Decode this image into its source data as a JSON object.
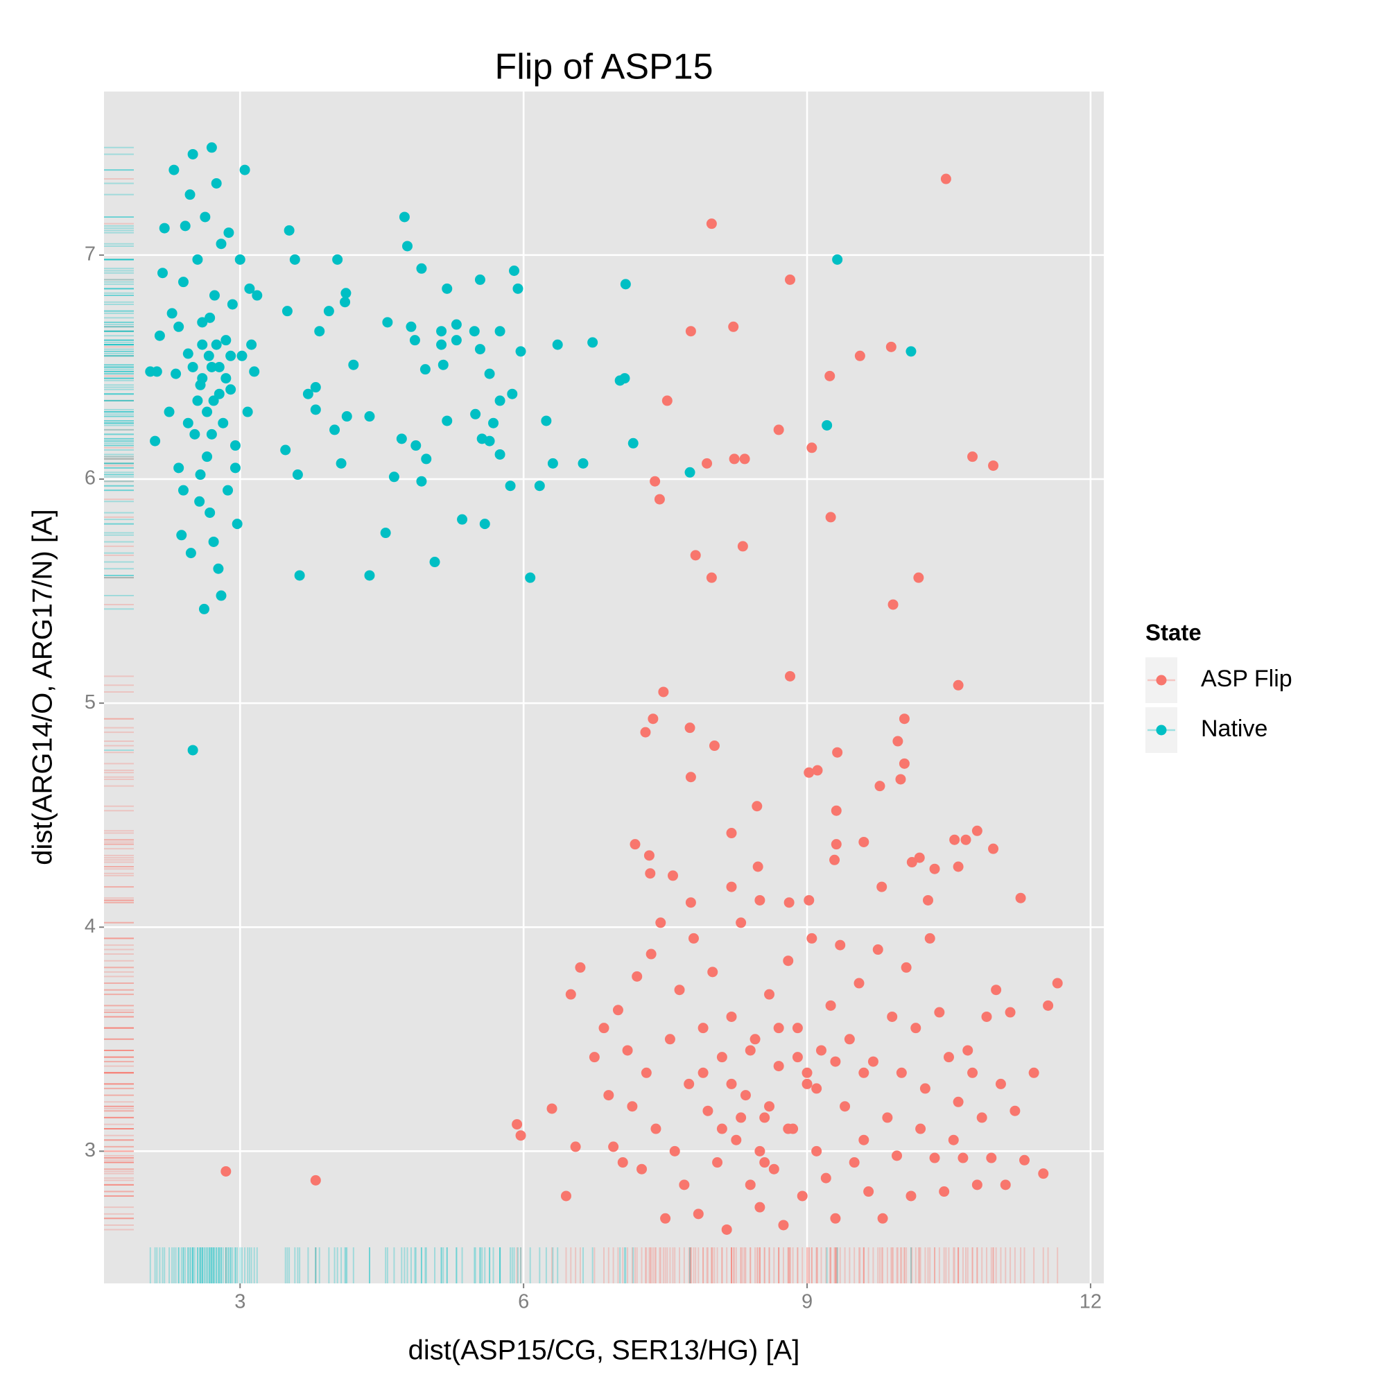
{
  "chart_data": {
    "type": "scatter",
    "title": "Flip of ASP15",
    "xlabel": "dist(ASP15/CG, SER13/HG) [A]",
    "ylabel": "dist(ARG14/O, ARG17/N) [A]",
    "legend_title": "State",
    "xlim": [
      1.56,
      12.14
    ],
    "ylim": [
      2.41,
      7.73
    ],
    "xticks": [
      3,
      6,
      9,
      12
    ],
    "yticks": [
      3,
      4,
      5,
      6,
      7
    ],
    "grid": true,
    "rug": true,
    "series": [
      {
        "name": "ASP Flip",
        "color": "#F8766D",
        "x": [
          7.99,
          10.47,
          8.82,
          7.77,
          8.22,
          9.89,
          9.56,
          9.24,
          7.52,
          8.7,
          9.05,
          10.75,
          10.97,
          7.94,
          8.23,
          8.34,
          7.39,
          7.44,
          9.25,
          8.32,
          7.82,
          7.99,
          10.18,
          9.91,
          8.82,
          10.6,
          7.48,
          7.37,
          7.29,
          7.76,
          8.02,
          10.03,
          9.96,
          9.32,
          10.03,
          9.02,
          9.11,
          9.99,
          7.77,
          9.77,
          8.47,
          9.31,
          8.2,
          10.8,
          7.18,
          10.56,
          10.68,
          9.6,
          9.31,
          10.97,
          7.33,
          10.19,
          9.29,
          10.11,
          8.48,
          10.6,
          10.35,
          7.34,
          7.58,
          9.79,
          8.2,
          11.26,
          10.28,
          8.81,
          8.5,
          9.02,
          7.77,
          5.97,
          5.93,
          6.3,
          6.45,
          6.55,
          6.5,
          6.6,
          6.75,
          6.85,
          6.9,
          6.95,
          7.0,
          7.05,
          7.1,
          7.15,
          7.2,
          7.25,
          7.3,
          7.35,
          7.4,
          7.45,
          7.5,
          7.55,
          7.6,
          7.65,
          7.7,
          7.75,
          7.8,
          7.85,
          7.9,
          7.95,
          8.0,
          8.05,
          8.1,
          8.15,
          8.2,
          8.25,
          8.3,
          8.35,
          8.4,
          8.45,
          8.5,
          8.55,
          8.6,
          8.65,
          8.7,
          8.75,
          8.8,
          8.85,
          8.9,
          8.95,
          9.0,
          9.05,
          9.1,
          9.15,
          9.2,
          9.25,
          9.3,
          9.35,
          9.4,
          9.45,
          9.5,
          9.55,
          9.6,
          9.65,
          9.7,
          9.75,
          9.8,
          9.85,
          9.9,
          9.95,
          10.0,
          10.05,
          10.1,
          10.15,
          10.2,
          10.25,
          10.3,
          10.35,
          10.4,
          10.45,
          10.5,
          10.55,
          10.6,
          10.65,
          10.7,
          10.75,
          10.8,
          10.85,
          10.9,
          10.95,
          11.0,
          11.05,
          11.1,
          11.15,
          11.2,
          11.3,
          11.4,
          11.5,
          11.55,
          11.65,
          8.2,
          8.4,
          8.6,
          8.8,
          9.0,
          8.5,
          8.7,
          9.1,
          8.3,
          8.9,
          9.3,
          8.1,
          7.9,
          9.6,
          8.55,
          2.85,
          3.8
        ],
        "y": [
          7.14,
          7.34,
          6.89,
          6.66,
          6.68,
          6.59,
          6.55,
          6.46,
          6.35,
          6.22,
          6.14,
          6.1,
          6.06,
          6.07,
          6.09,
          6.09,
          5.99,
          5.91,
          5.83,
          5.7,
          5.66,
          5.56,
          5.56,
          5.44,
          5.12,
          5.08,
          5.05,
          4.93,
          4.87,
          4.89,
          4.81,
          4.93,
          4.83,
          4.78,
          4.73,
          4.69,
          4.7,
          4.66,
          4.67,
          4.63,
          4.54,
          4.52,
          4.42,
          4.43,
          4.37,
          4.39,
          4.39,
          4.38,
          4.37,
          4.35,
          4.32,
          4.31,
          4.3,
          4.29,
          4.27,
          4.27,
          4.26,
          4.24,
          4.23,
          4.18,
          4.18,
          4.13,
          4.12,
          4.11,
          4.12,
          4.12,
          4.11,
          3.07,
          3.12,
          3.19,
          2.8,
          3.02,
          3.7,
          3.82,
          3.42,
          3.55,
          3.25,
          3.02,
          3.63,
          2.95,
          3.45,
          3.2,
          3.78,
          2.92,
          3.35,
          3.88,
          3.1,
          4.02,
          2.7,
          3.5,
          3.0,
          3.72,
          2.85,
          3.3,
          3.95,
          2.72,
          3.55,
          3.18,
          3.8,
          2.95,
          3.42,
          2.65,
          3.6,
          3.05,
          4.02,
          3.25,
          2.85,
          3.5,
          2.75,
          3.15,
          3.7,
          2.92,
          3.38,
          2.67,
          3.85,
          3.1,
          3.55,
          2.8,
          3.3,
          3.95,
          3.0,
          3.45,
          2.88,
          3.65,
          2.7,
          3.92,
          3.2,
          3.5,
          2.95,
          3.75,
          3.05,
          2.82,
          3.4,
          3.9,
          2.7,
          3.15,
          3.6,
          2.98,
          3.35,
          3.82,
          2.8,
          3.55,
          3.1,
          3.28,
          3.95,
          2.97,
          3.62,
          2.82,
          3.42,
          3.05,
          3.22,
          2.97,
          3.45,
          3.35,
          2.85,
          3.15,
          3.6,
          2.97,
          3.72,
          3.3,
          2.85,
          3.62,
          3.18,
          2.96,
          3.35,
          2.9,
          3.65,
          3.75,
          3.3,
          3.45,
          3.2,
          3.1,
          3.35,
          3.0,
          3.55,
          3.28,
          3.15,
          3.42,
          3.4,
          3.1,
          3.35,
          3.35,
          2.95,
          2.91,
          2.87
        ]
      },
      {
        "name": "Native",
        "color": "#00BFC4",
        "x": [
          3.52,
          3.58,
          4.03,
          4.74,
          4.77,
          4.92,
          3.5,
          3.84,
          3.94,
          4.12,
          4.11,
          4.56,
          4.81,
          4.85,
          5.13,
          5.13,
          5.29,
          5.29,
          5.48,
          5.54,
          5.19,
          5.9,
          5.94,
          5.75,
          5.97,
          5.54,
          5.15,
          4.96,
          4.2,
          3.8,
          3.72,
          3.8,
          4.13,
          4.0,
          4.37,
          5.19,
          5.49,
          5.68,
          5.88,
          5.75,
          5.64,
          5.56,
          5.64,
          5.75,
          4.71,
          4.86,
          4.97,
          4.92,
          4.63,
          4.07,
          3.48,
          3.61,
          5.86,
          6.17,
          6.24,
          6.31,
          6.63,
          6.36,
          6.73,
          7.02,
          7.07,
          7.08,
          7.16,
          7.76,
          9.32,
          10.1,
          9.21,
          5.35,
          5.59,
          4.54,
          5.06,
          3.63,
          4.37,
          6.07,
          2.5,
          2.05,
          2.1,
          2.12,
          2.15,
          2.18,
          2.2,
          2.25,
          2.28,
          2.3,
          2.32,
          2.35,
          2.38,
          2.4,
          2.42,
          2.45,
          2.47,
          2.48,
          2.5,
          2.52,
          2.55,
          2.57,
          2.58,
          2.6,
          2.62,
          2.63,
          2.65,
          2.67,
          2.68,
          2.7,
          2.72,
          2.73,
          2.75,
          2.77,
          2.78,
          2.8,
          2.8,
          2.82,
          2.85,
          2.87,
          2.88,
          2.9,
          2.92,
          2.95,
          2.97,
          3.0,
          3.02,
          3.05,
          3.08,
          3.1,
          3.12,
          3.15,
          3.18,
          2.6,
          2.7,
          2.65,
          2.75,
          2.55,
          2.85,
          2.7,
          2.6,
          2.5,
          2.9,
          2.78,
          2.68,
          2.45,
          2.35,
          2.95,
          2.58,
          2.72,
          2.4
        ],
        "y": [
          7.11,
          6.98,
          6.98,
          7.17,
          7.04,
          6.94,
          6.75,
          6.66,
          6.75,
          6.83,
          6.79,
          6.7,
          6.68,
          6.62,
          6.66,
          6.6,
          6.69,
          6.62,
          6.66,
          6.89,
          6.85,
          6.93,
          6.85,
          6.66,
          6.57,
          6.58,
          6.51,
          6.49,
          6.51,
          6.41,
          6.38,
          6.31,
          6.28,
          6.22,
          6.28,
          6.26,
          6.29,
          6.25,
          6.38,
          6.35,
          6.47,
          6.18,
          6.17,
          6.11,
          6.18,
          6.15,
          6.09,
          5.99,
          6.01,
          6.07,
          6.13,
          6.02,
          5.97,
          5.97,
          6.26,
          6.07,
          6.07,
          6.6,
          6.61,
          6.44,
          6.45,
          6.87,
          6.16,
          6.03,
          6.98,
          6.57,
          6.24,
          5.82,
          5.8,
          5.76,
          5.63,
          5.57,
          5.57,
          5.56,
          4.79,
          6.48,
          6.17,
          6.48,
          6.64,
          6.92,
          7.12,
          6.3,
          6.74,
          7.38,
          6.47,
          6.05,
          5.75,
          6.88,
          7.13,
          6.56,
          7.27,
          5.67,
          7.45,
          6.2,
          6.98,
          5.9,
          6.42,
          6.7,
          5.42,
          7.17,
          6.1,
          6.55,
          5.85,
          7.48,
          6.35,
          6.82,
          7.32,
          5.6,
          6.5,
          7.05,
          5.48,
          6.25,
          6.62,
          5.95,
          7.1,
          6.4,
          6.78,
          6.15,
          5.8,
          6.98,
          6.55,
          7.38,
          6.3,
          6.85,
          6.6,
          6.48,
          6.82,
          6.45,
          6.5,
          6.3,
          6.6,
          6.35,
          6.45,
          6.2,
          6.6,
          6.5,
          6.55,
          6.38,
          6.72,
          6.25,
          6.68,
          6.05,
          6.02,
          5.72,
          5.95
        ]
      }
    ]
  }
}
